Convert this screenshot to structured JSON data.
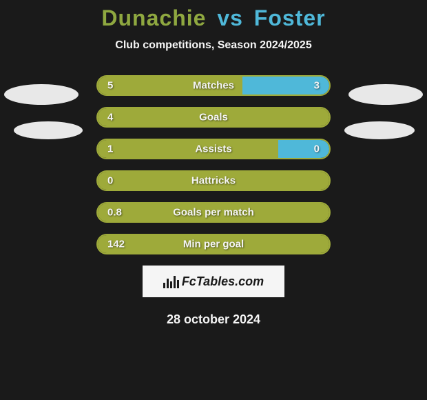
{
  "title": {
    "left": "Dunachie",
    "vs": "vs",
    "right": "Foster",
    "left_color": "#8fa840",
    "vs_color": "#4fb8d9",
    "right_color": "#4fb8d9",
    "fontsize": 32
  },
  "subtitle": "Club competitions, Season 2024/2025",
  "colors": {
    "background": "#1a1a1a",
    "bar_left": "#9eaa3a",
    "bar_right": "#4fb8d9",
    "text": "#f5f5f5",
    "brand_bg": "#f5f5f5",
    "brand_fg": "#1a1a1a",
    "oval": "#e8e8e8"
  },
  "bar_style": {
    "border_radius": 15,
    "height": 30,
    "gap": 16,
    "container_width": 340,
    "font_size": 15,
    "font_weight": 700
  },
  "stats": [
    {
      "label": "Matches",
      "left_value": "5",
      "right_value": "3",
      "left_pct": 62.5,
      "right_pct": 37.5,
      "border_color": "#9eaa3a"
    },
    {
      "label": "Goals",
      "left_value": "4",
      "right_value": "",
      "left_pct": 100,
      "right_pct": 0,
      "border_color": "#9eaa3a"
    },
    {
      "label": "Assists",
      "left_value": "1",
      "right_value": "0",
      "left_pct": 78,
      "right_pct": 22,
      "border_color": "#9eaa3a"
    },
    {
      "label": "Hattricks",
      "left_value": "0",
      "right_value": "",
      "left_pct": 100,
      "right_pct": 0,
      "border_color": "#9eaa3a"
    },
    {
      "label": "Goals per match",
      "left_value": "0.8",
      "right_value": "",
      "left_pct": 100,
      "right_pct": 0,
      "border_color": "#9eaa3a"
    },
    {
      "label": "Min per goal",
      "left_value": "142",
      "right_value": "",
      "left_pct": 100,
      "right_pct": 0,
      "border_color": "#9eaa3a"
    }
  ],
  "brand": {
    "text": "FcTables.com"
  },
  "date": "28 october 2024"
}
